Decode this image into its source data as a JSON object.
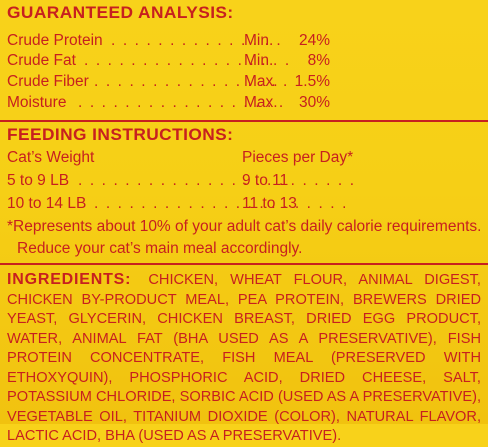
{
  "analysis": {
    "heading": "GUARANTEED ANALYSIS:",
    "rows": [
      {
        "label": "Crude Protein",
        "dots": ". . . . . . . . . . . . . . .",
        "qual": "Min.",
        "value": "24%"
      },
      {
        "label": "Crude Fat",
        "dots": ". . . . . . . . . . . . . . . . . .",
        "qual": "Min.",
        "value": "8%"
      },
      {
        "label": "Crude Fiber",
        "dots": ". . . . . . . . . . . . . . . . .",
        "qual": "Max.",
        "value": "1.5%"
      },
      {
        "label": "Moisture",
        "dots": ". . . . . . . . . . . . . . . . . .",
        "qual": "Max.",
        "value": "30%"
      }
    ]
  },
  "feeding": {
    "heading": "FEEDING INSTRUCTIONS:",
    "col1": "Cat’s Weight",
    "col2": "Pieces per Day*",
    "rows": [
      {
        "weight": "5 to 9 LB",
        "dots": ". . . . . . . . . . . . . . . . . . . . . . . .",
        "pieces": "9 to 11"
      },
      {
        "weight": "10 to 14 LB",
        "dots": ". . . . . . . . . . . . . . . . . . . . . .",
        "pieces": "11 to 13"
      }
    ],
    "note_line1": "*Represents about 10% of your adult cat’s daily calorie requirements.",
    "note_line2": "Reduce your cat’s main meal accordingly."
  },
  "ingredients": {
    "label": "INGREDIENTS:",
    "text": "CHICKEN, WHEAT FLOUR, ANIMAL DIGEST, CHICKEN BY-PRODUCT MEAL, PEA PROTEIN, BREWERS DRIED YEAST, GLYCERIN, CHICKEN BREAST, DRIED EGG PRODUCT, WATER, ANIMAL FAT (BHA USED AS A PRESERVATIVE), FISH PROTEIN CONCENTRATE, FISH MEAL (PRESERVED WITH ETHOXYQUIN), PHOSPHORIC ACID, DRIED CHEESE, SALT, POTASSIUM CHLORIDE, SORBIC ACID (USED AS A PRESERVATIVE), VEGETABLE OIL, TITANIUM DIOXIDE (COLOR), NATURAL FLAVOR, LACTIC ACID, BHA (USED AS A PRESERVATIVE)."
  },
  "colors": {
    "text": "#c7201f",
    "background": "#f6cf16"
  }
}
